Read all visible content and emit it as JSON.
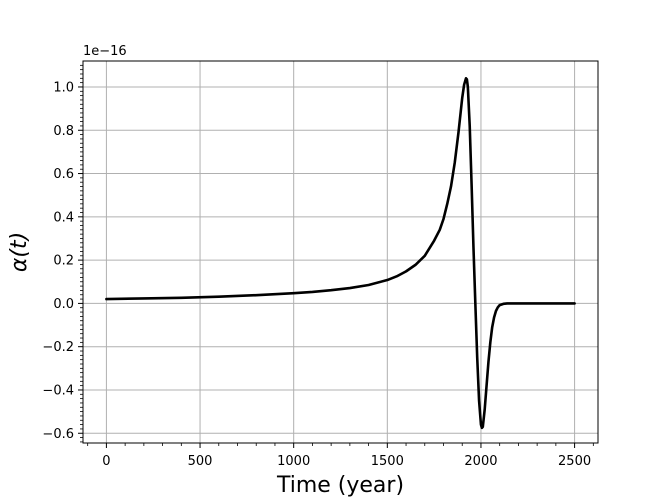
{
  "chart_data": {
    "type": "line",
    "xlabel": "Time (year)",
    "ylabel": "α(t)",
    "y_offset_text": "1e−16",
    "xlim": [
      -125,
      2625
    ],
    "ylim": [
      -0.645,
      1.12
    ],
    "grid": true,
    "line_color": "#000000",
    "grid_color": "#b0b0b0",
    "x_ticks": [
      0,
      500,
      1000,
      1500,
      2000,
      2500
    ],
    "x_tick_labels": [
      "0",
      "500",
      "1000",
      "1500",
      "2000",
      "2500"
    ],
    "y_ticks": [
      -0.6,
      -0.4,
      -0.2,
      0.0,
      0.2,
      0.4,
      0.6,
      0.8,
      1.0
    ],
    "y_tick_labels": [
      "−0.6",
      "−0.4",
      "−0.2",
      "0.0",
      "0.2",
      "0.4",
      "0.6",
      "0.8",
      "1.0"
    ],
    "series": [
      {
        "x": [
          0,
          200,
          400,
          600,
          800,
          1000,
          1100,
          1200,
          1300,
          1400,
          1500,
          1550,
          1600,
          1650,
          1700,
          1750,
          1780,
          1800,
          1820,
          1840,
          1860,
          1880,
          1900,
          1910,
          1920,
          1925,
          1930,
          1940,
          1950,
          1960,
          1970,
          1980,
          1990,
          2000,
          2005,
          2010,
          2020,
          2030,
          2040,
          2050,
          2060,
          2070,
          2080,
          2090,
          2100,
          2120,
          2140,
          2160,
          2200,
          2300,
          2500
        ],
        "y": [
          0.02,
          0.023,
          0.026,
          0.031,
          0.038,
          0.047,
          0.053,
          0.061,
          0.071,
          0.085,
          0.108,
          0.125,
          0.148,
          0.178,
          0.22,
          0.29,
          0.34,
          0.39,
          0.46,
          0.54,
          0.65,
          0.79,
          0.95,
          1.01,
          1.04,
          1.035,
          1.0,
          0.82,
          0.55,
          0.26,
          0.0,
          -0.25,
          -0.45,
          -0.56,
          -0.575,
          -0.57,
          -0.49,
          -0.38,
          -0.27,
          -0.18,
          -0.11,
          -0.065,
          -0.035,
          -0.018,
          -0.008,
          -0.002,
          0.0,
          0.0,
          0.0,
          0.0,
          0.0
        ]
      }
    ]
  }
}
